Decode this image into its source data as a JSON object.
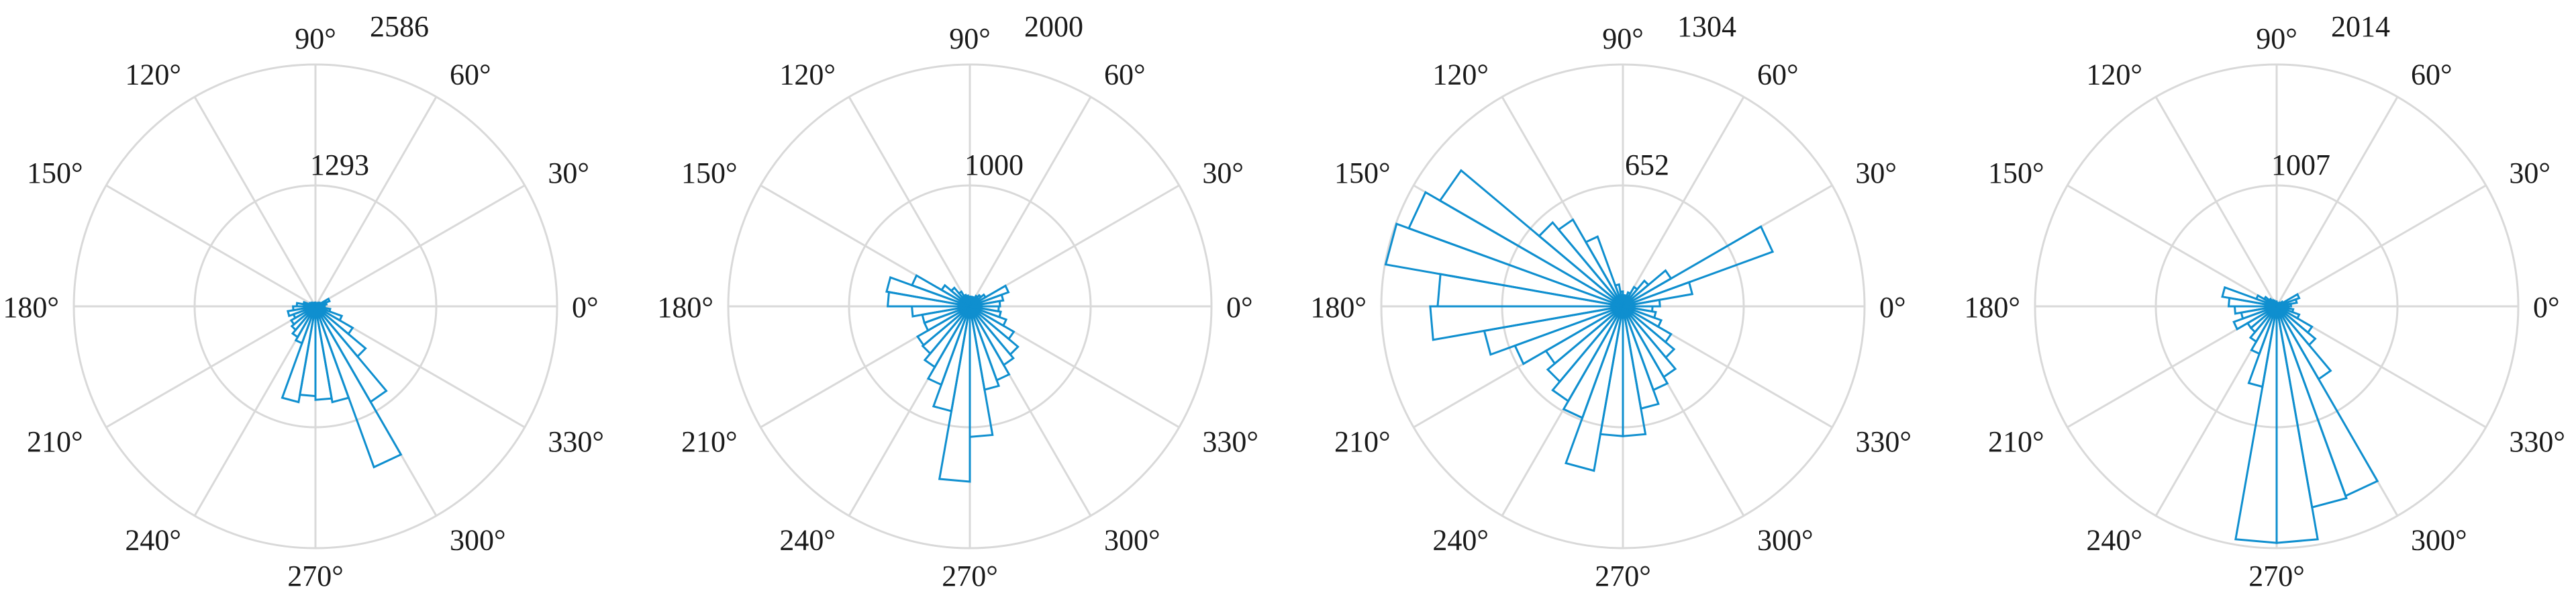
{
  "chart_style": {
    "bar_color": "#0f8fcf",
    "grid_color": "#d9d9d9",
    "text_color": "#1a1a1a"
  },
  "chart_data": [
    {
      "type": "polar-histogram",
      "angle_tick_labels": [
        "0°",
        "30°",
        "60°",
        "90°",
        "120°",
        "150°",
        "180°",
        "210°",
        "240°",
        "270°",
        "300°",
        "330°"
      ],
      "r_tick_labels": [
        "1293",
        "2586"
      ],
      "r_max": 2586,
      "bin_width_deg": 10,
      "bins": [
        {
          "start": 0,
          "value": 80
        },
        {
          "start": 10,
          "value": 120
        },
        {
          "start": 20,
          "value": 160
        },
        {
          "start": 30,
          "value": 60
        },
        {
          "start": 40,
          "value": 50
        },
        {
          "start": 50,
          "value": 40
        },
        {
          "start": 60,
          "value": 30
        },
        {
          "start": 70,
          "value": 30
        },
        {
          "start": 80,
          "value": 30
        },
        {
          "start": 90,
          "value": 40
        },
        {
          "start": 100,
          "value": 40
        },
        {
          "start": 110,
          "value": 40
        },
        {
          "start": 120,
          "value": 40
        },
        {
          "start": 130,
          "value": 50
        },
        {
          "start": 140,
          "value": 60
        },
        {
          "start": 150,
          "value": 70
        },
        {
          "start": 160,
          "value": 130
        },
        {
          "start": 170,
          "value": 200
        },
        {
          "start": 180,
          "value": 240
        },
        {
          "start": 190,
          "value": 300
        },
        {
          "start": 200,
          "value": 250
        },
        {
          "start": 210,
          "value": 300
        },
        {
          "start": 220,
          "value": 330
        },
        {
          "start": 230,
          "value": 380
        },
        {
          "start": 240,
          "value": 420
        },
        {
          "start": 250,
          "value": 1040
        },
        {
          "start": 260,
          "value": 960
        },
        {
          "start": 270,
          "value": 1000
        },
        {
          "start": 280,
          "value": 1040
        },
        {
          "start": 290,
          "value": 1830
        },
        {
          "start": 300,
          "value": 1180
        },
        {
          "start": 310,
          "value": 700
        },
        {
          "start": 320,
          "value": 460
        },
        {
          "start": 330,
          "value": 300
        },
        {
          "start": 340,
          "value": 160
        },
        {
          "start": 350,
          "value": 100
        }
      ]
    },
    {
      "type": "polar-histogram",
      "angle_tick_labels": [
        "0°",
        "30°",
        "60°",
        "90°",
        "120°",
        "150°",
        "180°",
        "210°",
        "240°",
        "270°",
        "300°",
        "330°"
      ],
      "r_tick_labels": [
        "1000",
        "2000"
      ],
      "r_max": 2000,
      "bin_width_deg": 10,
      "bins": [
        {
          "start": 0,
          "value": 250
        },
        {
          "start": 10,
          "value": 280
        },
        {
          "start": 20,
          "value": 340
        },
        {
          "start": 30,
          "value": 150
        },
        {
          "start": 40,
          "value": 120
        },
        {
          "start": 50,
          "value": 100
        },
        {
          "start": 60,
          "value": 80
        },
        {
          "start": 70,
          "value": 80
        },
        {
          "start": 80,
          "value": 80
        },
        {
          "start": 90,
          "value": 80
        },
        {
          "start": 100,
          "value": 90
        },
        {
          "start": 110,
          "value": 100
        },
        {
          "start": 120,
          "value": 140
        },
        {
          "start": 130,
          "value": 200
        },
        {
          "start": 140,
          "value": 270
        },
        {
          "start": 150,
          "value": 510
        },
        {
          "start": 160,
          "value": 700
        },
        {
          "start": 170,
          "value": 680
        },
        {
          "start": 180,
          "value": 480
        },
        {
          "start": 190,
          "value": 400
        },
        {
          "start": 200,
          "value": 400
        },
        {
          "start": 210,
          "value": 500
        },
        {
          "start": 220,
          "value": 510
        },
        {
          "start": 230,
          "value": 580
        },
        {
          "start": 240,
          "value": 690
        },
        {
          "start": 250,
          "value": 880
        },
        {
          "start": 260,
          "value": 1450
        },
        {
          "start": 270,
          "value": 1080
        },
        {
          "start": 280,
          "value": 700
        },
        {
          "start": 290,
          "value": 650
        },
        {
          "start": 300,
          "value": 560
        },
        {
          "start": 310,
          "value": 520
        },
        {
          "start": 320,
          "value": 420
        },
        {
          "start": 330,
          "value": 320
        },
        {
          "start": 340,
          "value": 260
        },
        {
          "start": 350,
          "value": 240
        }
      ]
    },
    {
      "type": "polar-histogram",
      "angle_tick_labels": [
        "0°",
        "30°",
        "60°",
        "90°",
        "120°",
        "150°",
        "180°",
        "210°",
        "240°",
        "270°",
        "300°",
        "330°"
      ],
      "r_tick_labels": [
        "652",
        "1304"
      ],
      "r_max": 1304,
      "bin_width_deg": 10,
      "bins": [
        {
          "start": 0,
          "value": 200
        },
        {
          "start": 10,
          "value": 380
        },
        {
          "start": 20,
          "value": 860
        },
        {
          "start": 30,
          "value": 300
        },
        {
          "start": 40,
          "value": 180
        },
        {
          "start": 50,
          "value": 120
        },
        {
          "start": 60,
          "value": 80
        },
        {
          "start": 70,
          "value": 60
        },
        {
          "start": 80,
          "value": 60
        },
        {
          "start": 90,
          "value": 80
        },
        {
          "start": 100,
          "value": 120
        },
        {
          "start": 110,
          "value": 400
        },
        {
          "start": 120,
          "value": 540
        },
        {
          "start": 130,
          "value": 590
        },
        {
          "start": 140,
          "value": 1140
        },
        {
          "start": 150,
          "value": 1230
        },
        {
          "start": 160,
          "value": 1300
        },
        {
          "start": 170,
          "value": 1000
        },
        {
          "start": 180,
          "value": 1040
        },
        {
          "start": 190,
          "value": 760
        },
        {
          "start": 200,
          "value": 620
        },
        {
          "start": 210,
          "value": 480
        },
        {
          "start": 220,
          "value": 530
        },
        {
          "start": 230,
          "value": 590
        },
        {
          "start": 240,
          "value": 640
        },
        {
          "start": 250,
          "value": 900
        },
        {
          "start": 260,
          "value": 700
        },
        {
          "start": 270,
          "value": 700
        },
        {
          "start": 280,
          "value": 560
        },
        {
          "start": 290,
          "value": 480
        },
        {
          "start": 300,
          "value": 440
        },
        {
          "start": 310,
          "value": 360
        },
        {
          "start": 320,
          "value": 300
        },
        {
          "start": 330,
          "value": 220
        },
        {
          "start": 340,
          "value": 180
        },
        {
          "start": 350,
          "value": 160
        }
      ]
    },
    {
      "type": "polar-histogram",
      "angle_tick_labels": [
        "0°",
        "30°",
        "60°",
        "90°",
        "120°",
        "150°",
        "180°",
        "210°",
        "240°",
        "270°",
        "300°",
        "330°"
      ],
      "r_tick_labels": [
        "1007",
        "2014"
      ],
      "r_max": 2014,
      "bin_width_deg": 10,
      "bins": [
        {
          "start": 0,
          "value": 120
        },
        {
          "start": 10,
          "value": 170
        },
        {
          "start": 20,
          "value": 200
        },
        {
          "start": 30,
          "value": 60
        },
        {
          "start": 40,
          "value": 40
        },
        {
          "start": 50,
          "value": 30
        },
        {
          "start": 60,
          "value": 30
        },
        {
          "start": 70,
          "value": 30
        },
        {
          "start": 80,
          "value": 30
        },
        {
          "start": 90,
          "value": 40
        },
        {
          "start": 100,
          "value": 40
        },
        {
          "start": 110,
          "value": 50
        },
        {
          "start": 120,
          "value": 60
        },
        {
          "start": 130,
          "value": 80
        },
        {
          "start": 140,
          "value": 120
        },
        {
          "start": 150,
          "value": 180
        },
        {
          "start": 160,
          "value": 460
        },
        {
          "start": 170,
          "value": 400
        },
        {
          "start": 180,
          "value": 350
        },
        {
          "start": 190,
          "value": 300
        },
        {
          "start": 200,
          "value": 380
        },
        {
          "start": 210,
          "value": 280
        },
        {
          "start": 220,
          "value": 280
        },
        {
          "start": 230,
          "value": 340
        },
        {
          "start": 240,
          "value": 420
        },
        {
          "start": 250,
          "value": 680
        },
        {
          "start": 260,
          "value": 1970
        },
        {
          "start": 270,
          "value": 1970
        },
        {
          "start": 280,
          "value": 1700
        },
        {
          "start": 290,
          "value": 1680
        },
        {
          "start": 300,
          "value": 700
        },
        {
          "start": 310,
          "value": 420
        },
        {
          "start": 320,
          "value": 340
        },
        {
          "start": 330,
          "value": 200
        },
        {
          "start": 340,
          "value": 140
        },
        {
          "start": 350,
          "value": 100
        }
      ]
    }
  ]
}
